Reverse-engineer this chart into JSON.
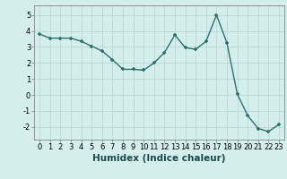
{
  "x": [
    0,
    1,
    2,
    3,
    4,
    5,
    6,
    7,
    8,
    9,
    10,
    11,
    12,
    13,
    14,
    15,
    16,
    17,
    18,
    19,
    20,
    21,
    22,
    23
  ],
  "y": [
    3.8,
    3.55,
    3.55,
    3.55,
    3.35,
    3.05,
    2.75,
    2.2,
    1.6,
    1.6,
    1.55,
    2.0,
    2.65,
    3.75,
    2.95,
    2.85,
    3.35,
    5.0,
    3.25,
    0.05,
    -1.3,
    -2.1,
    -2.3,
    -1.85
  ],
  "line_color": "#2d7070",
  "marker": "+",
  "markersize": 3.5,
  "linewidth": 1.0,
  "xlabel": "Humidex (Indice chaleur)",
  "xlabel_fontsize": 7.5,
  "xlabel_fontweight": "bold",
  "xlim": [
    -0.5,
    23.5
  ],
  "ylim": [
    -2.8,
    5.6
  ],
  "yticks": [
    -2,
    -1,
    0,
    1,
    2,
    3,
    4,
    5
  ],
  "xticks": [
    0,
    1,
    2,
    3,
    4,
    5,
    6,
    7,
    8,
    9,
    10,
    11,
    12,
    13,
    14,
    15,
    16,
    17,
    18,
    19,
    20,
    21,
    22,
    23
  ],
  "bg_color": "#d4eeec",
  "grid_color": "#b8d8d6",
  "tick_fontsize": 6.0,
  "spine_color": "#888888"
}
